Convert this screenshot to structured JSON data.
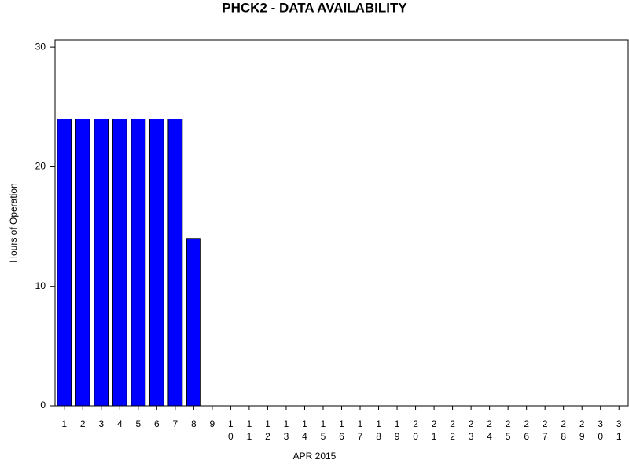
{
  "chart_data": {
    "type": "bar",
    "title": "PHCK2 - DATA AVAILABILITY",
    "x_label": "APR 2015",
    "y_label": "Hours of Operation",
    "categories": [
      "1",
      "2",
      "3",
      "4",
      "5",
      "6",
      "7",
      "8",
      "9",
      "10",
      "11",
      "12",
      "13",
      "14",
      "15",
      "16",
      "17",
      "18",
      "19",
      "20",
      "21",
      "22",
      "23",
      "24",
      "25",
      "26",
      "27",
      "28",
      "29",
      "30",
      "31"
    ],
    "values": [
      24,
      24,
      24,
      24,
      24,
      24,
      24,
      14,
      0,
      0,
      0,
      0,
      0,
      0,
      0,
      0,
      0,
      0,
      0,
      0,
      0,
      0,
      0,
      0,
      0,
      0,
      0,
      0,
      0,
      0,
      0
    ],
    "color": "#0000ff",
    "ylim": [
      0,
      30.6
    ],
    "yticks": [
      0,
      10,
      20,
      30
    ],
    "reference_line": 24,
    "grid": false
  }
}
